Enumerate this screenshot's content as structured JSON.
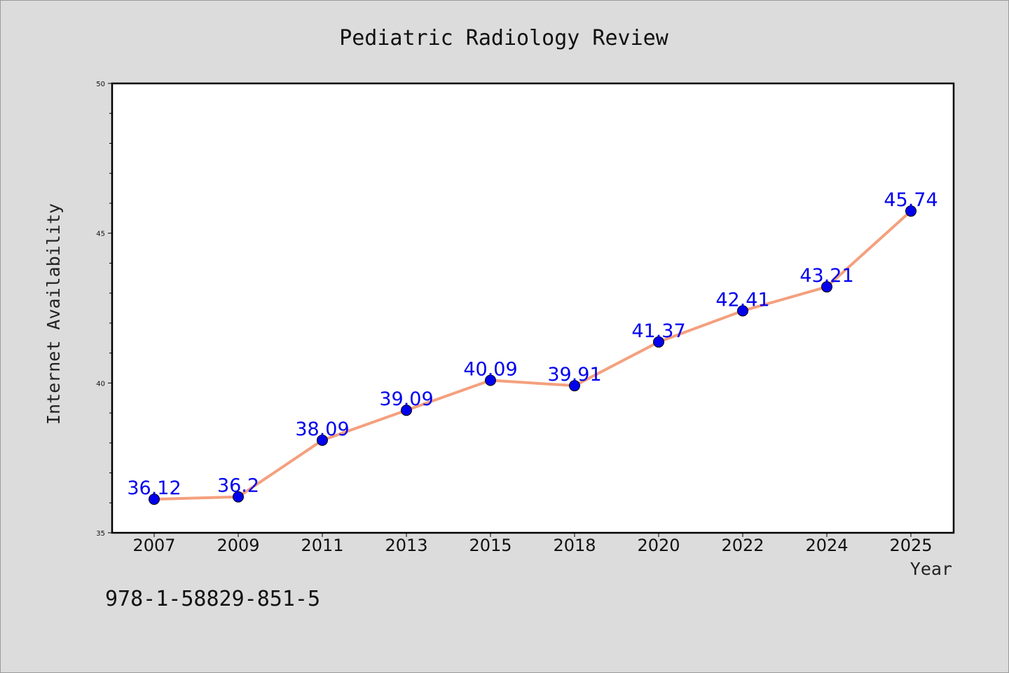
{
  "chart_data": {
    "type": "line",
    "title": "Pediatric Radiology Review",
    "xlabel": "Year",
    "ylabel": "Internet Availability",
    "categories": [
      "2007",
      "2009",
      "2011",
      "2013",
      "2015",
      "2018",
      "2020",
      "2022",
      "2024",
      "2025"
    ],
    "series": [
      {
        "values": [
          36.12,
          36.2,
          38.09,
          39.09,
          40.09,
          39.91,
          41.37,
          42.41,
          43.21,
          45.74
        ],
        "data_labels": [
          "36.12",
          "36.2",
          "38.09",
          "39.09",
          "40.09",
          "39.91",
          "41.37",
          "42.41",
          "43.21",
          "45.74"
        ],
        "line_color": "#f4a07e",
        "marker_color": "#0000ee"
      }
    ],
    "ylim": [
      35,
      50
    ],
    "yticks": [
      "35",
      "40",
      "45",
      "50"
    ],
    "grid": false,
    "legend": "none",
    "label_color": "#0000ee",
    "plot_background": "#ffffff",
    "figure_background": "#dcdcdc"
  },
  "footer": {
    "code": "978-1-58829-851-5"
  }
}
